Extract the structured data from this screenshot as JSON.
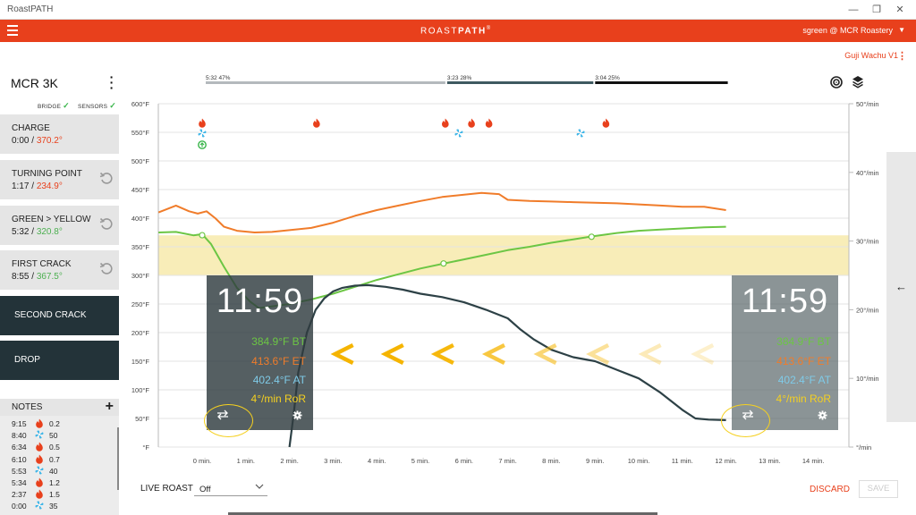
{
  "window": {
    "title": "RoastPATH"
  },
  "header": {
    "brand_light": "ROAST",
    "brand_bold": "PATH",
    "brand_mark": "®",
    "user": "sgreen @ MCR Roastery"
  },
  "coffee": {
    "name": "Guji Wachu  V1"
  },
  "machine": {
    "name": "MCR 3K",
    "bridge_label": "BRIDGE",
    "sensors_label": "SENSORS"
  },
  "events": [
    {
      "label": "CHARGE",
      "time": "0:00",
      "temp": "370.2°",
      "undo": false
    },
    {
      "label": "TURNING POINT",
      "time": "1:17",
      "temp": "234.9°",
      "undo": true
    },
    {
      "label": "GREEN > YELLOW",
      "time": "5:32",
      "temp": "320.8°",
      "undo": true
    },
    {
      "label": "FIRST CRACK",
      "time": "8:55",
      "temp": "367.5°",
      "undo": true
    }
  ],
  "actions": {
    "second_crack": "SECOND CRACK",
    "drop": "DROP"
  },
  "notes": {
    "title": "NOTES",
    "items": [
      {
        "time": "9:15",
        "icon": "flame-icon",
        "value": "0.2"
      },
      {
        "time": "8:40",
        "icon": "fan-icon",
        "value": "50"
      },
      {
        "time": "6:34",
        "icon": "flame-icon",
        "value": "0.5"
      },
      {
        "time": "6:10",
        "icon": "flame-icon",
        "value": "0.7"
      },
      {
        "time": "5:53",
        "icon": "fan-icon",
        "value": "40"
      },
      {
        "time": "5:34",
        "icon": "flame-icon",
        "value": "1.2"
      },
      {
        "time": "2:37",
        "icon": "flame-icon",
        "value": "1.5"
      },
      {
        "time": "0:00",
        "icon": "fan-icon",
        "value": "35"
      }
    ]
  },
  "readout_left": {
    "time": "11:59",
    "bt": "384.9°F BT",
    "et": "413.6°F ET",
    "at": "402.4°F AT",
    "ror": "4°/min RoR"
  },
  "readout_right": {
    "time": "11:59",
    "bt": "384.9°F BT",
    "et": "413.6°F ET",
    "at": "402.4°F AT",
    "ror": "4°/min RoR"
  },
  "phases": [
    {
      "label": "5:32  47%",
      "minutes_start": 0,
      "minutes_end": 5.53,
      "color": "#b4b9bd"
    },
    {
      "label": "3:23  28%",
      "minutes_start": 5.53,
      "minutes_end": 8.92,
      "color": "#3e5960"
    },
    {
      "label": "3:04  25%",
      "minutes_start": 8.92,
      "minutes_end": 12.0,
      "color": "#111111"
    }
  ],
  "live_roast": {
    "label": "LIVE ROAST",
    "value": "Off"
  },
  "buttons": {
    "discard": "DISCARD",
    "save": "SAVE"
  },
  "colors": {
    "accent": "#e8401c",
    "bt": "#6cc644",
    "et": "#f07c2a",
    "ror": "#2d4146",
    "band": "#f8edb8",
    "marker_flame": "#e8401c",
    "marker_fan": "#3fb6e8"
  },
  "chart_data": {
    "type": "line",
    "x_ticks": [
      "0 min.",
      "1 min.",
      "2 min.",
      "3 min.",
      "4 min.",
      "5 min.",
      "6 min.",
      "7 min.",
      "8 min.",
      "9 min.",
      "10 min.",
      "11 min.",
      "12 min.",
      "13 min.",
      "14 min."
    ],
    "y_ticks_left": [
      "600°F",
      "550°F",
      "500°F",
      "450°F",
      "400°F",
      "350°F",
      "300°F",
      "250°F",
      "200°F",
      "150°F",
      "100°F",
      "50°F",
      "°F"
    ],
    "y_ticks_right": [
      "50°/min",
      "40°/min",
      "30°/min",
      "20°/min",
      "10°/min",
      "°/min"
    ],
    "xlim": [
      -1,
      15
    ],
    "ylim_temp": [
      0,
      600
    ],
    "ylim_ror": [
      0,
      50
    ],
    "band": {
      "from": 300,
      "to": 370
    },
    "series": [
      {
        "color": "#f07c2a",
        "axis": "temp",
        "points": [
          [
            -1,
            410
          ],
          [
            -0.6,
            422
          ],
          [
            -0.3,
            412
          ],
          [
            -0.1,
            408
          ],
          [
            0.1,
            412
          ],
          [
            0.3,
            400
          ],
          [
            0.5,
            385
          ],
          [
            0.8,
            378
          ],
          [
            1.2,
            375
          ],
          [
            1.6,
            376
          ],
          [
            2,
            379
          ],
          [
            2.5,
            383
          ],
          [
            3,
            392
          ],
          [
            3.5,
            404
          ],
          [
            4,
            414
          ],
          [
            4.5,
            422
          ],
          [
            5,
            430
          ],
          [
            5.5,
            437
          ],
          [
            6,
            441
          ],
          [
            6.4,
            444
          ],
          [
            6.8,
            442
          ],
          [
            7,
            432
          ],
          [
            7.5,
            430
          ],
          [
            8,
            429
          ],
          [
            8.5,
            428
          ],
          [
            9,
            427
          ],
          [
            9.5,
            426
          ],
          [
            10,
            424
          ],
          [
            10.5,
            422
          ],
          [
            11,
            420
          ],
          [
            11.5,
            420
          ],
          [
            12,
            414
          ]
        ]
      },
      {
        "color": "#6cc644",
        "axis": "temp",
        "points": [
          [
            -1,
            375
          ],
          [
            -0.6,
            376
          ],
          [
            -0.2,
            370
          ],
          [
            0,
            372
          ],
          [
            0.2,
            355
          ],
          [
            0.5,
            315
          ],
          [
            0.8,
            278
          ],
          [
            1.1,
            254
          ],
          [
            1.3,
            243
          ],
          [
            1.6,
            246
          ],
          [
            2,
            250
          ],
          [
            2.5,
            258
          ],
          [
            3,
            268
          ],
          [
            3.5,
            280
          ],
          [
            4,
            292
          ],
          [
            4.5,
            302
          ],
          [
            5,
            312
          ],
          [
            5.55,
            321
          ],
          [
            6,
            328
          ],
          [
            6.5,
            336
          ],
          [
            7,
            344
          ],
          [
            7.5,
            350
          ],
          [
            8,
            357
          ],
          [
            8.5,
            363
          ],
          [
            8.92,
            368
          ],
          [
            9.5,
            374
          ],
          [
            10,
            378
          ],
          [
            10.5,
            380
          ],
          [
            11,
            382
          ],
          [
            11.5,
            384
          ],
          [
            12,
            385
          ]
        ]
      },
      {
        "color": "#2d4146",
        "axis": "temp",
        "points": [
          [
            2,
            0
          ],
          [
            2.1,
            60
          ],
          [
            2.2,
            130
          ],
          [
            2.4,
            200
          ],
          [
            2.6,
            240
          ],
          [
            2.8,
            260
          ],
          [
            3,
            272
          ],
          [
            3.2,
            278
          ],
          [
            3.5,
            282
          ],
          [
            3.8,
            283
          ],
          [
            4.2,
            280
          ],
          [
            4.6,
            275
          ],
          [
            5,
            268
          ],
          [
            5.5,
            262
          ],
          [
            6,
            253
          ],
          [
            6.5,
            240
          ],
          [
            7,
            225
          ],
          [
            7.3,
            205
          ],
          [
            7.6,
            188
          ],
          [
            8,
            170
          ],
          [
            8.5,
            157
          ],
          [
            9,
            150
          ],
          [
            9.5,
            135
          ],
          [
            10,
            120
          ],
          [
            10.5,
            95
          ],
          [
            11,
            65
          ],
          [
            11.3,
            50
          ],
          [
            11.6,
            48
          ],
          [
            12,
            47
          ]
        ]
      }
    ],
    "event_points": [
      {
        "minute": 0,
        "temp": 370.2
      },
      {
        "minute": 5.53,
        "temp": 320.8
      },
      {
        "minute": 8.92,
        "temp": 367.5
      }
    ],
    "markers": [
      {
        "kind": "flame",
        "minute": 0,
        "row": 0
      },
      {
        "kind": "fan",
        "minute": 0,
        "row": 1
      },
      {
        "kind": "charge",
        "minute": 0,
        "row": 2
      },
      {
        "kind": "flame",
        "minute": 2.62,
        "row": 0
      },
      {
        "kind": "flame",
        "minute": 5.57,
        "row": 0
      },
      {
        "kind": "fan",
        "minute": 5.88,
        "row": 1
      },
      {
        "kind": "flame",
        "minute": 6.17,
        "row": 0
      },
      {
        "kind": "flame",
        "minute": 6.57,
        "row": 0
      },
      {
        "kind": "fan",
        "minute": 8.67,
        "row": 1
      },
      {
        "kind": "flame",
        "minute": 9.25,
        "row": 0
      }
    ],
    "chevrons": [
      {
        "minute": 3.25,
        "opacity": 1
      },
      {
        "minute": 4.4,
        "opacity": 1
      },
      {
        "minute": 5.55,
        "opacity": 0.95
      },
      {
        "minute": 6.72,
        "opacity": 0.75
      },
      {
        "minute": 7.9,
        "opacity": 0.55
      },
      {
        "minute": 9.1,
        "opacity": 0.4
      },
      {
        "minute": 10.3,
        "opacity": 0.28
      },
      {
        "minute": 11.5,
        "opacity": 0.2
      }
    ]
  }
}
